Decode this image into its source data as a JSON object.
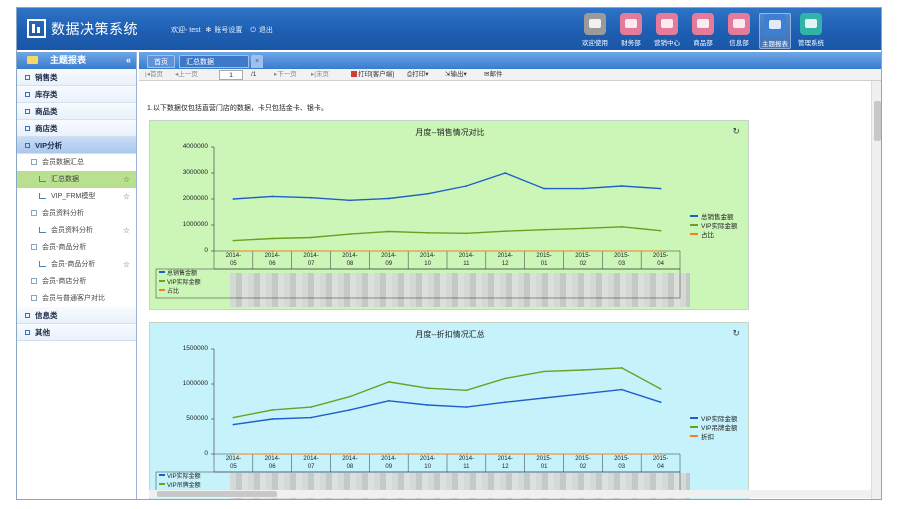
{
  "header": {
    "app_title": "数据决策系统",
    "welcome": "欢迎- test",
    "account_settings": "账号设置",
    "logout": "退出",
    "nav": [
      {
        "label": "欢迎使用",
        "color": "#9a9a9a",
        "icon": "mail-icon"
      },
      {
        "label": "财务部",
        "color": "#e57b9a",
        "icon": "briefcase-icon"
      },
      {
        "label": "营销中心",
        "color": "#e57b9a",
        "icon": "briefcase-icon"
      },
      {
        "label": "商品部",
        "color": "#e57b9a",
        "icon": "briefcase-icon"
      },
      {
        "label": "信息部",
        "color": "#e57b9a",
        "icon": "briefcase-icon"
      },
      {
        "label": "主题报表",
        "color": "#3f7fd2",
        "icon": "chart-icon",
        "active": true
      },
      {
        "label": "管理系统",
        "color": "#31b3a8",
        "icon": "gear-icon"
      }
    ]
  },
  "sidebar": {
    "title": "主题报表",
    "collapse": "«",
    "categories": [
      "销售类",
      "库存类",
      "商品类",
      "商店类",
      "VIP分析",
      "信息类",
      "其他"
    ],
    "vip_sub": {
      "group1": "会员数据汇总",
      "leaf1": "汇总数据",
      "leaf2": "VIP_FRM模型",
      "group2": "会员资料分析",
      "leaf3": "会员资料分析",
      "group3": "会员-商品分析",
      "leaf4": "会员-商品分析",
      "group4": "会员-商店分析",
      "group5": "会员与普通客户对比"
    }
  },
  "tabs": {
    "home": "首页",
    "summary": "汇总数据",
    "close": "×"
  },
  "toolbar": {
    "first": "首页",
    "prev": "上一页",
    "page_value": "1",
    "total": "/1",
    "next": "下一页",
    "last": "末页",
    "print_client": "打印[客户端]",
    "print": "打印",
    "export": "输出",
    "mail": "邮件"
  },
  "content": {
    "note": "1.以下数据仅包括直营门店的数据，卡只包括金卡、银卡。"
  },
  "chart_data": [
    {
      "type": "line",
      "title": "月度--销售情况对比",
      "x": [
        "2014-05",
        "2014-06",
        "2014-07",
        "2014-08",
        "2014-09",
        "2014-10",
        "2014-11",
        "2014-12",
        "2015-01",
        "2015-02",
        "2015-03",
        "2015-04"
      ],
      "x_labels": [
        [
          "2014-",
          "05"
        ],
        [
          "2014-",
          "06"
        ],
        [
          "2014-",
          "07"
        ],
        [
          "2014-",
          "08"
        ],
        [
          "2014-",
          "09"
        ],
        [
          "2014-",
          "10"
        ],
        [
          "2014-",
          "11"
        ],
        [
          "2014-",
          "12"
        ],
        [
          "2015-",
          "01"
        ],
        [
          "2015-",
          "02"
        ],
        [
          "2015-",
          "03"
        ],
        [
          "2015-",
          "04"
        ]
      ],
      "yticks": [
        "4000000",
        "3000000",
        "2000000",
        "1000000",
        "0"
      ],
      "ylim": [
        0,
        4000000
      ],
      "series": [
        {
          "name": "总销售金额",
          "color": "#1f5fc9",
          "values": [
            2000000,
            2100000,
            2050000,
            1950000,
            2020000,
            2200000,
            2500000,
            3000000,
            2400000,
            2400000,
            2500000,
            2400000
          ]
        },
        {
          "name": "VIP实际金额",
          "color": "#6aa120",
          "values": [
            400000,
            480000,
            520000,
            650000,
            750000,
            700000,
            680000,
            760000,
            820000,
            870000,
            930000,
            780000
          ]
        },
        {
          "name": "占比",
          "color": "#f08020",
          "values": [
            0,
            0,
            0,
            0,
            0,
            0,
            0,
            0,
            0,
            0,
            0,
            0
          ]
        }
      ],
      "legend_placement": "right",
      "table_legend": [
        "总销售金额",
        "VIP实际金额",
        "占比"
      ]
    },
    {
      "type": "line",
      "title": "月度--折扣情况汇总",
      "x": [
        "2014-05",
        "2014-06",
        "2014-07",
        "2014-08",
        "2014-09",
        "2014-10",
        "2014-11",
        "2014-12",
        "2015-01",
        "2015-02",
        "2015-03",
        "2015-04"
      ],
      "x_labels": [
        [
          "2014-",
          "05"
        ],
        [
          "2014-",
          "06"
        ],
        [
          "2014-",
          "07"
        ],
        [
          "2014-",
          "08"
        ],
        [
          "2014-",
          "09"
        ],
        [
          "2014-",
          "10"
        ],
        [
          "2014-",
          "11"
        ],
        [
          "2014-",
          "12"
        ],
        [
          "2015-",
          "01"
        ],
        [
          "2015-",
          "02"
        ],
        [
          "2015-",
          "03"
        ],
        [
          "2015-",
          "04"
        ]
      ],
      "yticks": [
        "1500000",
        "1000000",
        "500000",
        "0"
      ],
      "ylim": [
        0,
        1500000
      ],
      "series": [
        {
          "name": "VIP实际金额",
          "color": "#1f5fc9",
          "values": [
            420000,
            500000,
            520000,
            630000,
            760000,
            700000,
            670000,
            740000,
            800000,
            860000,
            920000,
            740000
          ]
        },
        {
          "name": "VIP吊牌金额",
          "color": "#6aa120",
          "values": [
            520000,
            630000,
            670000,
            820000,
            1030000,
            940000,
            910000,
            1080000,
            1180000,
            1200000,
            1230000,
            930000
          ]
        },
        {
          "name": "折扣",
          "color": "#f08020",
          "values": [
            0,
            0,
            0,
            0,
            0,
            0,
            0,
            0,
            0,
            0,
            0,
            0
          ]
        }
      ],
      "legend_placement": "right",
      "table_legend": [
        "VIP实际金额",
        "VIP吊牌金额"
      ]
    }
  ]
}
